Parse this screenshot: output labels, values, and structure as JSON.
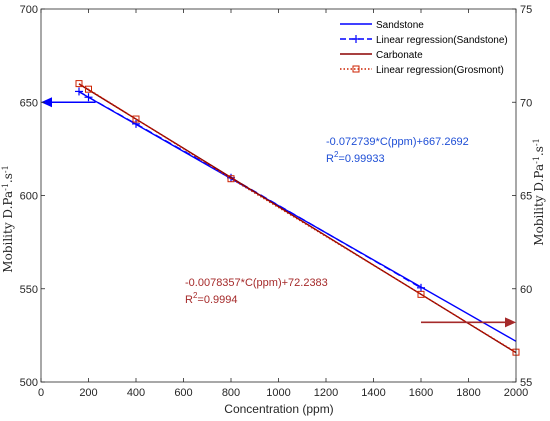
{
  "chart_data": {
    "type": "line",
    "xlabel": "Concentration (ppm)",
    "ylabel_left": "Mobility D.Pa^-1.s^-1",
    "ylabel_right": "Mobility D.Pa^-1.s^-1",
    "xlim": [
      0,
      2000
    ],
    "ylim_left": [
      500,
      700
    ],
    "ylim_right": [
      55,
      75
    ],
    "xticks": [
      "0",
      "200",
      "400",
      "600",
      "800",
      "1000",
      "1200",
      "1400",
      "1600",
      "1800",
      "2000"
    ],
    "yticks_left": [
      "500",
      "550",
      "600",
      "650",
      "700"
    ],
    "yticks_right": [
      "55",
      "60",
      "65",
      "70",
      "75"
    ],
    "legend_position": "top-right",
    "series": [
      {
        "name": "Sandstone",
        "axis": "left",
        "style": "solid",
        "color": "#0000ff",
        "x": [
          160,
          2000
        ],
        "y": [
          655.6,
          521.8
        ]
      },
      {
        "name": "Linear regression(Sandstone)",
        "axis": "left",
        "style": "dashed-plus",
        "color": "#0000ff",
        "x": [
          160,
          200,
          400,
          800,
          1600
        ],
        "y": [
          655.8,
          652.7,
          638.4,
          609.5,
          550.5
        ]
      },
      {
        "name": "Carbonate",
        "axis": "right",
        "style": "solid",
        "color": "#8b0000",
        "x": [
          160,
          2000
        ],
        "y": [
          70.98,
          56.57
        ]
      },
      {
        "name": "Linear regression(Grosmont)",
        "axis": "right",
        "style": "dotted-square",
        "color": "#cc2200",
        "x": [
          160,
          200,
          400,
          800,
          1600,
          2000
        ],
        "y": [
          71.0,
          70.7,
          69.1,
          65.9,
          59.7,
          56.6
        ]
      }
    ],
    "annotations": {
      "sandstone_eq": "-0.072739*C(ppm)+667.2692",
      "sandstone_r2_prefix": "R",
      "sandstone_r2_sup": "2",
      "sandstone_r2_value": "=0.99933",
      "carbonate_eq": "-0.0078357*C(ppm)+72.2383",
      "carbonate_r2_prefix": "R",
      "carbonate_r2_sup": "2",
      "carbonate_r2_value": "=0.9994"
    },
    "arrows": [
      {
        "axis": "left",
        "from_x": 230,
        "to_x": 0,
        "y": 650
      },
      {
        "axis": "right",
        "from_x": 1600,
        "to_x": 2000,
        "y": 58.2
      }
    ],
    "colors": {
      "blue": "#0000ff",
      "dark_red": "#8b0000",
      "red_marker": "#cc2200",
      "arrow_red": "#a52a2a",
      "annotation_blue": "#1f4fd6",
      "annotation_red": "#a52a2a",
      "axis": "#262626"
    }
  }
}
